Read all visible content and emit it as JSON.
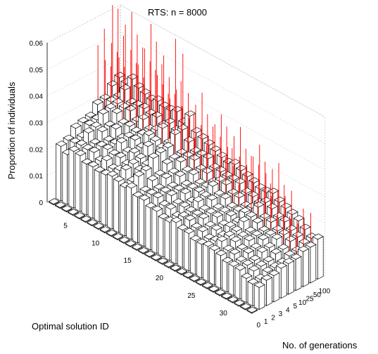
{
  "chart_data": {
    "type": "bar3d",
    "title": "RTS: n = 8000",
    "zlabel": "Proportion of individuals",
    "ylabel": "Optimal solution ID",
    "xlabel": "No. of generations",
    "z_ticks": [
      "0",
      "0.01",
      "0.02",
      "0.03",
      "0.04",
      "0.05",
      "0.06"
    ],
    "zlim": [
      0,
      0.06
    ],
    "y_ticks": [
      "5",
      "10",
      "15",
      "20",
      "25",
      "30"
    ],
    "x_ticks": [
      "0",
      "1",
      "2",
      "3",
      "4",
      "5",
      "10",
      "25",
      "50",
      "100"
    ],
    "solution_ids": [
      1,
      2,
      3,
      4,
      5,
      6,
      7,
      8,
      9,
      10,
      11,
      12,
      13,
      14,
      15,
      16,
      17,
      18,
      19,
      20,
      21,
      22,
      23,
      24,
      25,
      26,
      27,
      28,
      29,
      30,
      31,
      32
    ],
    "generations": [
      "0",
      "1",
      "2",
      "3",
      "4",
      "5",
      "10",
      "25",
      "50",
      "100"
    ],
    "front_values_at_100_generations": [
      0.035,
      0.034,
      0.037,
      0.035,
      0.034,
      0.033,
      0.034,
      0.033,
      0.033,
      0.034,
      0.031,
      0.035,
      0.03,
      0.029,
      0.028,
      0.027,
      0.026,
      0.025,
      0.026,
      0.025,
      0.024,
      0.023,
      0.022,
      0.022,
      0.023,
      0.021,
      0.02,
      0.019,
      0.018,
      0.016,
      0.014,
      0.015
    ],
    "colors": {
      "bars": "#ffffff",
      "bar_edges": "#000000",
      "spikes": "#ff0000",
      "grid": "#888888"
    }
  }
}
